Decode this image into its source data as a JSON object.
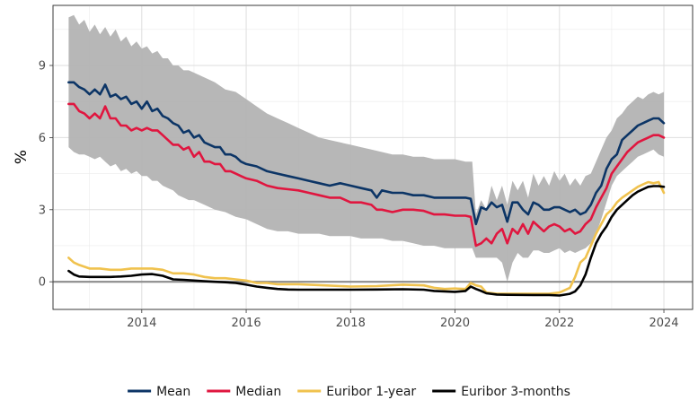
{
  "chart_data": {
    "type": "line",
    "title": "",
    "xlabel": "",
    "ylabel": "%",
    "xlim": [
      2012.3,
      2024.55
    ],
    "ylim": [
      -1.15,
      11.5
    ],
    "x_ticks": [
      2014,
      2016,
      2018,
      2020,
      2022,
      2024
    ],
    "x_tick_labels": [
      "2014",
      "2016",
      "2018",
      "2020",
      "2022",
      "2024"
    ],
    "y_ticks": [
      0,
      3,
      6,
      9
    ],
    "y_tick_labels": [
      "0",
      "3",
      "6",
      "9"
    ],
    "grid": true,
    "legend_position": "bottom",
    "zero_line": 0,
    "band": {
      "x": [
        2012.6,
        2012.7,
        2012.8,
        2012.9,
        2013.0,
        2013.1,
        2013.2,
        2013.3,
        2013.4,
        2013.5,
        2013.6,
        2013.7,
        2013.8,
        2013.9,
        2014.0,
        2014.1,
        2014.2,
        2014.3,
        2014.4,
        2014.5,
        2014.6,
        2014.7,
        2014.8,
        2014.9,
        2015.0,
        2015.2,
        2015.4,
        2015.6,
        2015.8,
        2016.0,
        2016.2,
        2016.4,
        2016.6,
        2016.8,
        2017.0,
        2017.2,
        2017.4,
        2017.6,
        2017.8,
        2018.0,
        2018.2,
        2018.4,
        2018.6,
        2018.8,
        2019.0,
        2019.2,
        2019.4,
        2019.6,
        2019.8,
        2020.0,
        2020.2,
        2020.33,
        2020.4,
        2020.5,
        2020.6,
        2020.7,
        2020.8,
        2020.9,
        2021.0,
        2021.1,
        2021.2,
        2021.3,
        2021.4,
        2021.5,
        2021.6,
        2021.7,
        2021.8,
        2021.9,
        2022.0,
        2022.1,
        2022.2,
        2022.3,
        2022.4,
        2022.5,
        2022.6,
        2022.7,
        2022.8,
        2022.9,
        2023.0,
        2023.1,
        2023.2,
        2023.3,
        2023.4,
        2023.5,
        2023.6,
        2023.7,
        2023.8,
        2023.9,
        2024.0
      ],
      "upper": [
        11.0,
        11.1,
        10.7,
        10.9,
        10.4,
        10.7,
        10.3,
        10.6,
        10.2,
        10.5,
        10.0,
        10.2,
        9.8,
        10.0,
        9.7,
        9.8,
        9.5,
        9.6,
        9.3,
        9.3,
        9.0,
        9.0,
        8.8,
        8.8,
        8.7,
        8.5,
        8.3,
        8.0,
        7.9,
        7.6,
        7.3,
        7.0,
        6.8,
        6.6,
        6.4,
        6.2,
        6.0,
        5.9,
        5.8,
        5.7,
        5.6,
        5.5,
        5.4,
        5.3,
        5.3,
        5.2,
        5.2,
        5.1,
        5.1,
        5.1,
        5.0,
        5.0,
        2.8,
        3.4,
        3.0,
        4.0,
        3.4,
        4.0,
        3.2,
        4.2,
        3.8,
        4.2,
        3.5,
        4.5,
        4.0,
        4.4,
        4.0,
        4.6,
        4.2,
        4.5,
        4.0,
        4.3,
        4.0,
        4.4,
        4.5,
        5.0,
        5.5,
        6.0,
        6.3,
        6.8,
        7.0,
        7.3,
        7.5,
        7.7,
        7.6,
        7.8,
        7.9,
        7.8,
        7.9
      ],
      "lower": [
        5.6,
        5.4,
        5.3,
        5.3,
        5.2,
        5.1,
        5.2,
        5.0,
        4.8,
        4.9,
        4.6,
        4.7,
        4.5,
        4.6,
        4.4,
        4.4,
        4.2,
        4.2,
        4.0,
        3.9,
        3.8,
        3.6,
        3.5,
        3.4,
        3.4,
        3.2,
        3.0,
        2.9,
        2.7,
        2.6,
        2.4,
        2.2,
        2.1,
        2.1,
        2.0,
        2.0,
        2.0,
        1.9,
        1.9,
        1.9,
        1.8,
        1.8,
        1.8,
        1.7,
        1.7,
        1.6,
        1.5,
        1.5,
        1.4,
        1.4,
        1.4,
        1.4,
        1.0,
        1.0,
        1.0,
        1.0,
        1.0,
        0.8,
        0.0,
        0.8,
        1.2,
        1.0,
        1.0,
        1.3,
        1.3,
        1.2,
        1.2,
        1.3,
        1.4,
        1.2,
        1.3,
        1.2,
        1.3,
        1.4,
        1.6,
        2.0,
        2.6,
        3.3,
        4.0,
        4.4,
        4.6,
        4.8,
        5.0,
        5.2,
        5.3,
        5.4,
        5.5,
        5.3,
        5.2
      ],
      "color": "#b3b3b3"
    },
    "series": [
      {
        "name": "Mean",
        "color": "#0c3566",
        "x": [
          2012.6,
          2012.7,
          2012.8,
          2012.9,
          2013.0,
          2013.1,
          2013.2,
          2013.3,
          2013.4,
          2013.5,
          2013.6,
          2013.7,
          2013.8,
          2013.9,
          2014.0,
          2014.1,
          2014.2,
          2014.3,
          2014.4,
          2014.5,
          2014.6,
          2014.7,
          2014.8,
          2014.9,
          2015.0,
          2015.1,
          2015.2,
          2015.3,
          2015.4,
          2015.5,
          2015.6,
          2015.7,
          2015.8,
          2015.9,
          2016.0,
          2016.2,
          2016.4,
          2016.6,
          2016.8,
          2017.0,
          2017.2,
          2017.4,
          2017.6,
          2017.8,
          2018.0,
          2018.2,
          2018.4,
          2018.5,
          2018.6,
          2018.8,
          2019.0,
          2019.2,
          2019.4,
          2019.6,
          2019.8,
          2020.0,
          2020.2,
          2020.3,
          2020.4,
          2020.5,
          2020.6,
          2020.7,
          2020.8,
          2020.9,
          2021.0,
          2021.1,
          2021.2,
          2021.3,
          2021.4,
          2021.5,
          2021.6,
          2021.7,
          2021.8,
          2021.9,
          2022.0,
          2022.1,
          2022.2,
          2022.3,
          2022.4,
          2022.5,
          2022.6,
          2022.7,
          2022.8,
          2022.9,
          2023.0,
          2023.1,
          2023.2,
          2023.3,
          2023.4,
          2023.5,
          2023.6,
          2023.7,
          2023.8,
          2023.9,
          2024.0
        ],
        "values": [
          8.3,
          8.3,
          8.1,
          8.0,
          7.8,
          8.0,
          7.8,
          8.2,
          7.7,
          7.8,
          7.6,
          7.7,
          7.4,
          7.5,
          7.2,
          7.5,
          7.1,
          7.2,
          6.9,
          6.8,
          6.6,
          6.5,
          6.2,
          6.3,
          6.0,
          6.1,
          5.8,
          5.7,
          5.6,
          5.6,
          5.3,
          5.3,
          5.2,
          5.0,
          4.9,
          4.8,
          4.6,
          4.5,
          4.4,
          4.3,
          4.2,
          4.1,
          4.0,
          4.1,
          4.0,
          3.9,
          3.8,
          3.5,
          3.8,
          3.7,
          3.7,
          3.6,
          3.6,
          3.5,
          3.5,
          3.5,
          3.5,
          3.45,
          2.4,
          3.1,
          3.0,
          3.3,
          3.1,
          3.2,
          2.5,
          3.3,
          3.3,
          3.0,
          2.8,
          3.3,
          3.2,
          3.0,
          3.0,
          3.1,
          3.1,
          3.0,
          2.9,
          3.0,
          2.8,
          2.9,
          3.2,
          3.7,
          4.0,
          4.7,
          5.1,
          5.3,
          5.9,
          6.1,
          6.3,
          6.5,
          6.6,
          6.7,
          6.8,
          6.8,
          6.6
        ]
      },
      {
        "name": "Median",
        "color": "#e0163f",
        "x": [
          2012.6,
          2012.7,
          2012.8,
          2012.9,
          2013.0,
          2013.1,
          2013.2,
          2013.3,
          2013.4,
          2013.5,
          2013.6,
          2013.7,
          2013.8,
          2013.9,
          2014.0,
          2014.1,
          2014.2,
          2014.3,
          2014.4,
          2014.5,
          2014.6,
          2014.7,
          2014.8,
          2014.9,
          2015.0,
          2015.1,
          2015.2,
          2015.3,
          2015.4,
          2015.5,
          2015.6,
          2015.7,
          2015.8,
          2015.9,
          2016.0,
          2016.2,
          2016.4,
          2016.6,
          2016.8,
          2017.0,
          2017.2,
          2017.4,
          2017.6,
          2017.8,
          2018.0,
          2018.2,
          2018.4,
          2018.5,
          2018.6,
          2018.8,
          2019.0,
          2019.2,
          2019.4,
          2019.6,
          2019.8,
          2020.0,
          2020.2,
          2020.3,
          2020.4,
          2020.5,
          2020.6,
          2020.7,
          2020.8,
          2020.9,
          2021.0,
          2021.1,
          2021.2,
          2021.3,
          2021.4,
          2021.5,
          2021.6,
          2021.7,
          2021.8,
          2021.9,
          2022.0,
          2022.1,
          2022.2,
          2022.3,
          2022.4,
          2022.5,
          2022.6,
          2022.7,
          2022.8,
          2022.9,
          2023.0,
          2023.1,
          2023.2,
          2023.3,
          2023.4,
          2023.5,
          2023.6,
          2023.7,
          2023.8,
          2023.9,
          2024.0
        ],
        "values": [
          7.4,
          7.4,
          7.1,
          7.0,
          6.8,
          7.0,
          6.8,
          7.3,
          6.8,
          6.8,
          6.5,
          6.5,
          6.3,
          6.4,
          6.3,
          6.4,
          6.3,
          6.3,
          6.1,
          5.9,
          5.7,
          5.7,
          5.5,
          5.6,
          5.2,
          5.4,
          5.0,
          5.0,
          4.9,
          4.9,
          4.6,
          4.6,
          4.5,
          4.4,
          4.3,
          4.2,
          4.0,
          3.9,
          3.85,
          3.8,
          3.7,
          3.6,
          3.5,
          3.5,
          3.3,
          3.3,
          3.2,
          3.0,
          3.0,
          2.9,
          3.0,
          3.0,
          2.95,
          2.8,
          2.8,
          2.75,
          2.75,
          2.7,
          1.5,
          1.6,
          1.8,
          1.6,
          2.0,
          2.2,
          1.6,
          2.2,
          2.0,
          2.4,
          2.0,
          2.5,
          2.3,
          2.1,
          2.3,
          2.4,
          2.3,
          2.1,
          2.2,
          2.0,
          2.1,
          2.4,
          2.6,
          3.1,
          3.5,
          3.9,
          4.5,
          4.8,
          5.1,
          5.4,
          5.6,
          5.8,
          5.9,
          6.0,
          6.1,
          6.1,
          6.0
        ]
      },
      {
        "name": "Euribor 1-year",
        "color": "#f0c24e",
        "x": [
          2012.6,
          2012.7,
          2012.8,
          2013.0,
          2013.2,
          2013.4,
          2013.6,
          2013.8,
          2014.0,
          2014.2,
          2014.4,
          2014.6,
          2014.8,
          2015.0,
          2015.2,
          2015.4,
          2015.6,
          2015.8,
          2016.0,
          2016.2,
          2016.4,
          2016.6,
          2016.8,
          2017.0,
          2017.5,
          2018.0,
          2018.5,
          2019.0,
          2019.4,
          2019.6,
          2019.8,
          2020.0,
          2020.2,
          2020.3,
          2020.4,
          2020.5,
          2020.6,
          2020.8,
          2021.0,
          2021.5,
          2021.8,
          2022.0,
          2022.2,
          2022.3,
          2022.4,
          2022.5,
          2022.6,
          2022.7,
          2022.8,
          2022.9,
          2023.0,
          2023.1,
          2023.2,
          2023.3,
          2023.4,
          2023.5,
          2023.6,
          2023.7,
          2023.8,
          2023.9,
          2024.0
        ],
        "values": [
          1.0,
          0.8,
          0.7,
          0.55,
          0.55,
          0.5,
          0.5,
          0.55,
          0.55,
          0.55,
          0.5,
          0.35,
          0.35,
          0.3,
          0.2,
          0.15,
          0.15,
          0.1,
          0.05,
          -0.05,
          -0.05,
          -0.1,
          -0.1,
          -0.1,
          -0.15,
          -0.2,
          -0.18,
          -0.12,
          -0.15,
          -0.25,
          -0.3,
          -0.28,
          -0.3,
          -0.05,
          -0.15,
          -0.2,
          -0.45,
          -0.5,
          -0.5,
          -0.5,
          -0.5,
          -0.45,
          -0.25,
          0.2,
          0.8,
          1.0,
          1.5,
          2.0,
          2.4,
          2.8,
          3.0,
          3.3,
          3.5,
          3.65,
          3.8,
          3.95,
          4.05,
          4.15,
          4.1,
          4.15,
          3.7
        ]
      },
      {
        "name": "Euribor 3-months",
        "color": "#000000",
        "x": [
          2012.6,
          2012.7,
          2012.8,
          2013.0,
          2013.2,
          2013.4,
          2013.6,
          2013.8,
          2014.0,
          2014.2,
          2014.4,
          2014.6,
          2014.8,
          2015.0,
          2015.2,
          2015.4,
          2015.6,
          2015.8,
          2016.0,
          2016.2,
          2016.4,
          2016.6,
          2016.8,
          2017.0,
          2017.5,
          2018.0,
          2018.5,
          2019.0,
          2019.4,
          2019.6,
          2019.8,
          2020.0,
          2020.2,
          2020.3,
          2020.4,
          2020.5,
          2020.6,
          2020.8,
          2021.0,
          2021.5,
          2021.8,
          2022.0,
          2022.2,
          2022.3,
          2022.4,
          2022.5,
          2022.6,
          2022.7,
          2022.8,
          2022.9,
          2023.0,
          2023.1,
          2023.2,
          2023.3,
          2023.4,
          2023.5,
          2023.6,
          2023.7,
          2023.8,
          2023.9,
          2024.0
        ],
        "values": [
          0.45,
          0.3,
          0.22,
          0.2,
          0.2,
          0.2,
          0.22,
          0.25,
          0.3,
          0.32,
          0.25,
          0.1,
          0.08,
          0.05,
          0.02,
          0.0,
          -0.02,
          -0.05,
          -0.12,
          -0.2,
          -0.25,
          -0.3,
          -0.32,
          -0.33,
          -0.33,
          -0.33,
          -0.32,
          -0.31,
          -0.33,
          -0.38,
          -0.4,
          -0.42,
          -0.38,
          -0.2,
          -0.3,
          -0.38,
          -0.48,
          -0.53,
          -0.54,
          -0.55,
          -0.55,
          -0.57,
          -0.5,
          -0.4,
          -0.15,
          0.3,
          1.0,
          1.6,
          2.0,
          2.3,
          2.7,
          3.0,
          3.2,
          3.4,
          3.6,
          3.75,
          3.85,
          3.95,
          3.98,
          3.98,
          3.95
        ]
      }
    ]
  }
}
